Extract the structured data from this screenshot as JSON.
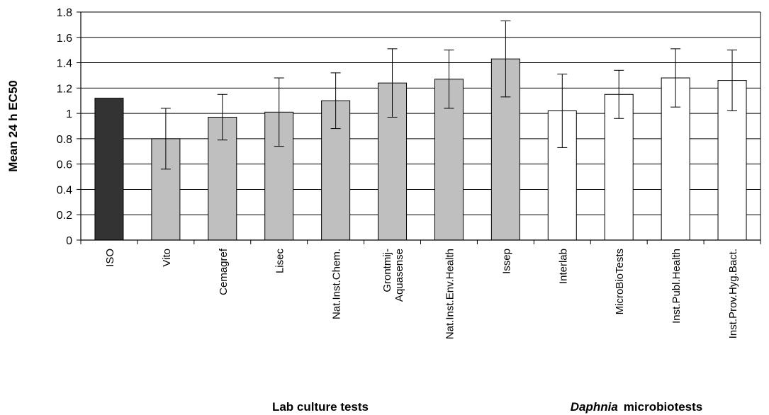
{
  "chart_data": {
    "type": "bar",
    "ylabel": "Mean 24 h EC50",
    "ylim": [
      0,
      1.8
    ],
    "yticks": [
      0,
      0.2,
      0.4,
      0.6,
      0.8,
      1,
      1.2,
      1.4,
      1.6,
      1.8
    ],
    "ytick_labels": [
      "0",
      "0.2",
      "0.4",
      "0.6",
      "0.8",
      "1",
      "1.2",
      "1.4",
      "1.6",
      "1.8"
    ],
    "grid": true,
    "categories": [
      {
        "label": "ISO",
        "value": 1.12,
        "err_low": null,
        "err_high": null,
        "group": "reference"
      },
      {
        "label": "Vito",
        "value": 0.8,
        "err_low": 0.56,
        "err_high": 1.04,
        "group": "lab"
      },
      {
        "label": "Cemagref",
        "value": 0.97,
        "err_low": 0.79,
        "err_high": 1.15,
        "group": "lab"
      },
      {
        "label": "Lisec",
        "value": 1.01,
        "err_low": 0.74,
        "err_high": 1.28,
        "group": "lab"
      },
      {
        "label": "Nat.Inst.Chem.",
        "value": 1.1,
        "err_low": 0.88,
        "err_high": 1.32,
        "group": "lab"
      },
      {
        "label": "Grontmij-\nAquasense",
        "value": 1.24,
        "err_low": 0.97,
        "err_high": 1.51,
        "group": "lab"
      },
      {
        "label": "Nat.Inst.Env.Health",
        "value": 1.27,
        "err_low": 1.04,
        "err_high": 1.5,
        "group": "lab"
      },
      {
        "label": "Issep",
        "value": 1.43,
        "err_low": 1.13,
        "err_high": 1.73,
        "group": "lab"
      },
      {
        "label": "Interlab",
        "value": 1.02,
        "err_low": 0.73,
        "err_high": 1.31,
        "group": "micro"
      },
      {
        "label": "MicroBioTests",
        "value": 1.15,
        "err_low": 0.96,
        "err_high": 1.34,
        "group": "micro"
      },
      {
        "label": "Inst.Publ.Health",
        "value": 1.28,
        "err_low": 1.05,
        "err_high": 1.51,
        "group": "micro"
      },
      {
        "label": "Inst.Prov.Hyg.Bact.",
        "value": 1.26,
        "err_low": 1.02,
        "err_high": 1.5,
        "group": "micro"
      }
    ],
    "group_labels": {
      "lab": "Lab culture tests",
      "micro_italic": "Daphnia",
      "micro_rest": "microbiotests"
    },
    "colors": {
      "reference": "#333333",
      "lab": "#bfbfbf",
      "micro": "#ffffff",
      "stroke": "#000000",
      "grid": "#000000"
    }
  }
}
